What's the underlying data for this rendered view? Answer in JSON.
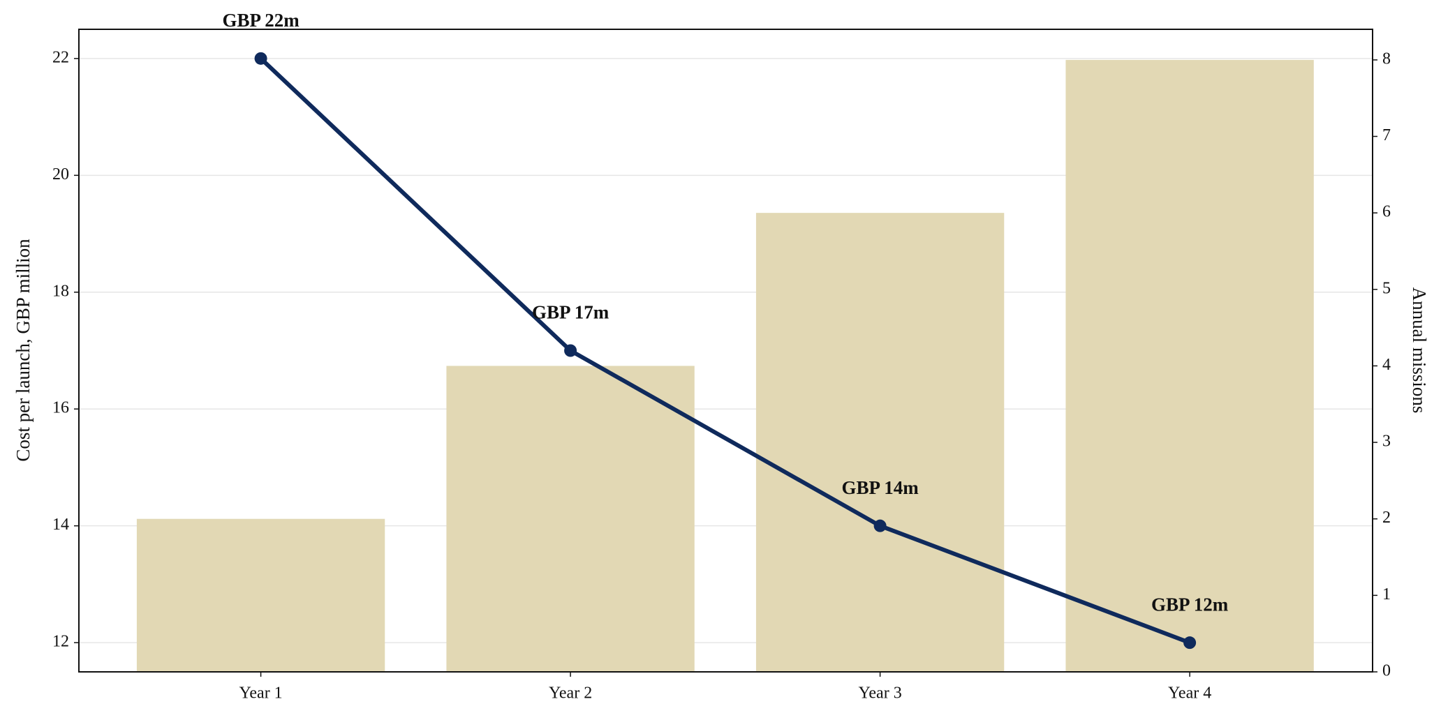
{
  "chart_data": {
    "type": "combo",
    "categories": [
      "Year 1",
      "Year 2",
      "Year 3",
      "Year 4"
    ],
    "ylabel": "Cost per launch, GBP million",
    "y2label": "Annual missions",
    "ylim": [
      11.5,
      22.5
    ],
    "yticks": [
      12,
      14,
      16,
      18,
      20,
      22
    ],
    "y2lim": [
      0,
      8.4
    ],
    "y2ticks": [
      0,
      1,
      2,
      3,
      4,
      5,
      6,
      7,
      8
    ],
    "grid": true,
    "series": [
      {
        "type": "bar",
        "axis": "y2",
        "color": "#e2d8b4",
        "values": [
          2,
          4,
          6,
          8
        ]
      },
      {
        "type": "line",
        "axis": "y",
        "color": "#0f2a5c",
        "values": [
          22,
          17,
          14,
          12
        ],
        "value_labels": [
          "GBP 22m",
          "GBP 17m",
          "GBP 14m",
          "GBP 12m"
        ]
      }
    ]
  }
}
